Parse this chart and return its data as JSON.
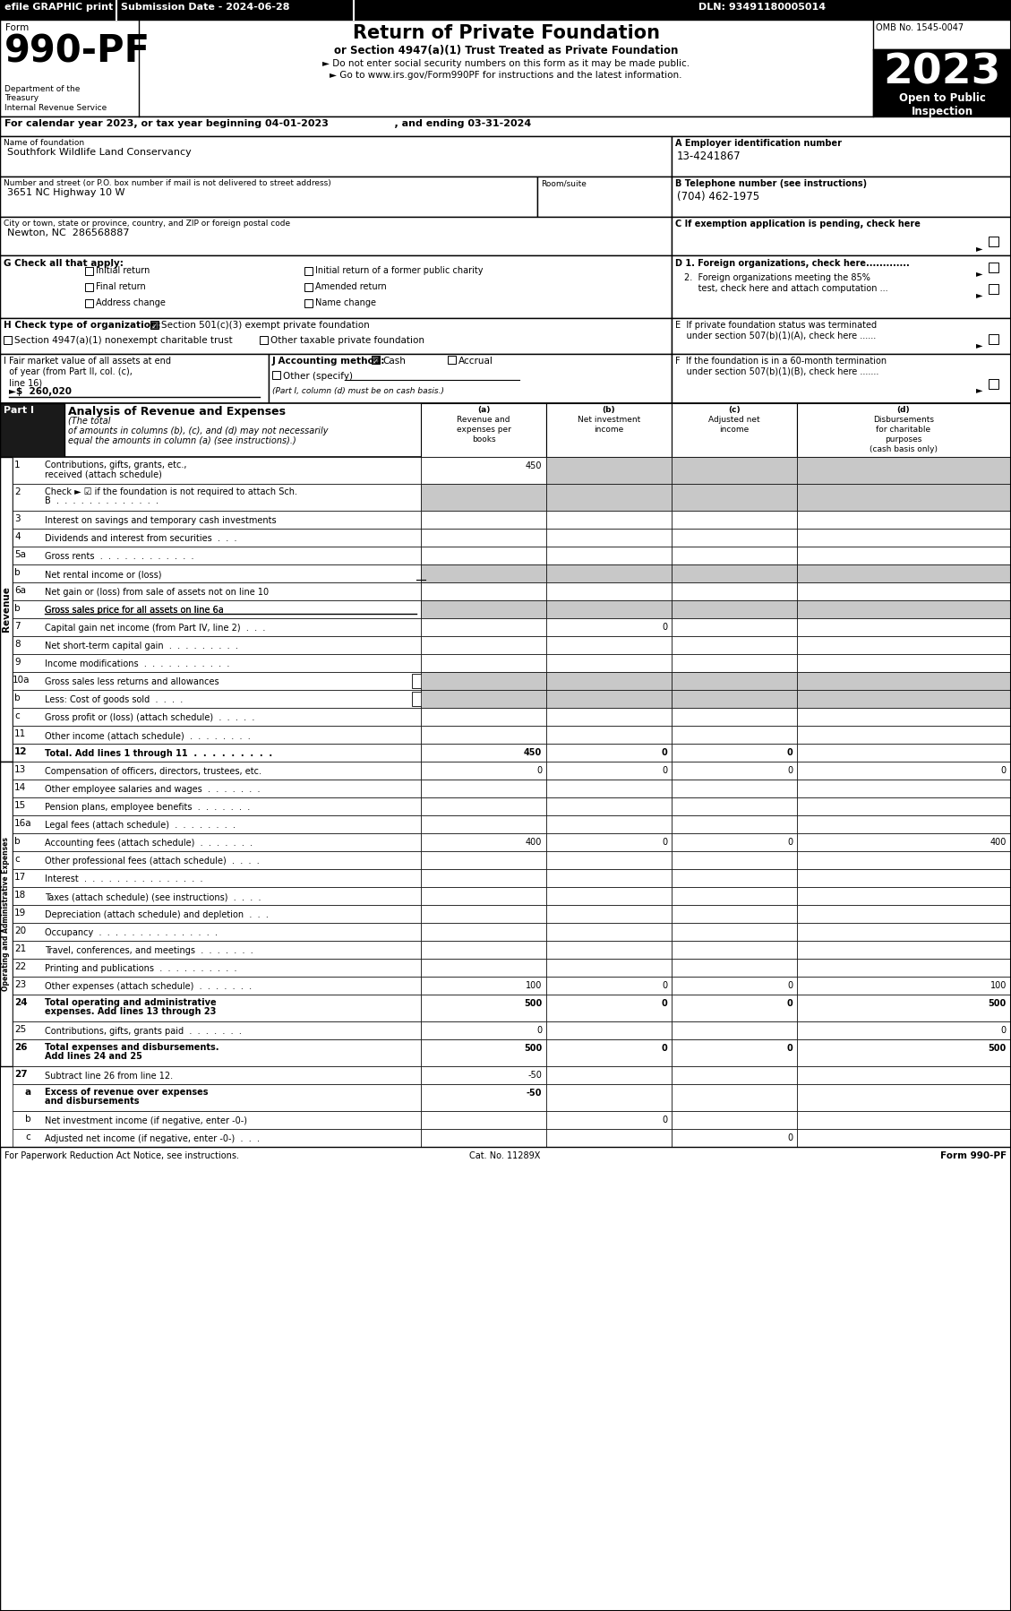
{
  "header_bar_text1": "efile GRAPHIC print",
  "header_bar_text2": "Submission Date - 2024-06-28",
  "header_bar_text3": "DLN: 93491180005014",
  "omb_text": "OMB No. 1545-0047",
  "form_number": "990-PF",
  "title_main": "Return of Private Foundation",
  "title_sub": "or Section 4947(a)(1) Trust Treated as Private Foundation",
  "bullet1": "► Do not enter social security numbers on this form as it may be made public.",
  "bullet2": "► Go to www.irs.gov/Form990PF for instructions and the latest information.",
  "bullet2_url": "www.irs.gov/Form990PF",
  "year_box_text": "2023",
  "open_text": "Open to Public\nInspection",
  "cal_year_line": "For calendar year 2023, or tax year beginning 04-01-2023                   , and ending 03-31-2024",
  "name_label": "Name of foundation",
  "name_value": "Southfork Wildlife Land Conservancy",
  "ein_label": "A Employer identification number",
  "ein_value": "13-4241867",
  "addr_label": "Number and street (or P.O. box number if mail is not delivered to street address)",
  "addr_value": "3651 NC Highway 10 W",
  "room_label": "Room/suite",
  "phone_label": "B Telephone number (see instructions)",
  "phone_value": "(704) 462-1975",
  "city_label": "City or town, state or province, country, and ZIP or foreign postal code",
  "city_value": "Newton, NC  286568887",
  "c_label": "C If exemption application is pending, check here",
  "d1_text": "D 1. Foreign organizations, check here.............",
  "d2_text": "2.  Foreign organizations meeting the 85%\n     test, check here and attach computation ...",
  "e_text": "E  If private foundation status was terminated\n    under section 507(b)(1)(A), check here ......",
  "f_text": "F  If the foundation is in a 60-month termination\n    under section 507(b)(1)(B), check here .......",
  "g_label": "G Check all that apply:",
  "g_options": [
    {
      "label": "Initial return",
      "col": 0,
      "row": 0
    },
    {
      "label": "Initial return of a former public charity",
      "col": 1,
      "row": 0
    },
    {
      "label": "Final return",
      "col": 0,
      "row": 1
    },
    {
      "label": "Amended return",
      "col": 1,
      "row": 1
    },
    {
      "label": "Address change",
      "col": 0,
      "row": 2
    },
    {
      "label": "Name change",
      "col": 1,
      "row": 2
    }
  ],
  "h_checked": "Section 501(c)(3) exempt private foundation",
  "h_option2": "Section 4947(a)(1) nonexempt charitable trust",
  "h_option3": "Other taxable private foundation",
  "i_lines": [
    "I Fair market value of all assets at end",
    "  of year (from Part II, col. (c),",
    "  line 16)  ►$  260,020"
  ],
  "j_cash_checked": true,
  "j_note": "(Part I, column (d) must be on cash basis.)",
  "col_a_header": "(a)\nRevenue and\nexpenses per\nbooks",
  "col_b_header": "(b)\nNet investment\nincome",
  "col_c_header": "(c)\nAdjusted net\nincome",
  "col_d_header": "(d)\nDisbursements\nfor charitable\npurposes\n(cash basis only)",
  "revenue_rows": [
    {
      "num": "1",
      "label": "Contributions, gifts, grants, etc., received (attach schedule)",
      "two_line": true,
      "a": "450",
      "b_shade": true,
      "c_shade": true,
      "d_shade": true
    },
    {
      "num": "2",
      "label": "Check ► ☑ if the foundation is not required to attach Sch. B  .  .  .  .  .  .  .  .  .  .  .  .  .",
      "two_line": true,
      "a_shade": true,
      "b_shade": true,
      "c_shade": true,
      "d_shade": true
    },
    {
      "num": "3",
      "label": "Interest on savings and temporary cash investments",
      "two_line": false
    },
    {
      "num": "4",
      "label": "Dividends and interest from securities  .  .  .",
      "two_line": false
    },
    {
      "num": "5a",
      "label": "Gross rents  .  .  .  .  .  .  .  .  .  .  .  .",
      "two_line": false
    },
    {
      "num": "b",
      "label": "Net rental income or (loss)",
      "two_line": false,
      "a_shade": true,
      "b_shade": true,
      "c_shade": true,
      "d_shade": true,
      "underline_a": true
    },
    {
      "num": "6a",
      "label": "Net gain or (loss) from sale of assets not on line 10",
      "two_line": false
    },
    {
      "num": "b",
      "label": "Gross sales price for all assets on line 6a",
      "two_line": false,
      "a_shade": true,
      "b_shade": true,
      "c_shade": true,
      "d_shade": true,
      "underline_label": true
    },
    {
      "num": "7",
      "label": "Capital gain net income (from Part IV, line 2)  .  .  .",
      "two_line": false,
      "b": "0"
    },
    {
      "num": "8",
      "label": "Net short-term capital gain  .  .  .  .  .  .  .  .  .",
      "two_line": false
    },
    {
      "num": "9",
      "label": "Income modifications  .  .  .  .  .  .  .  .  .  .  .",
      "two_line": false
    },
    {
      "num": "10a",
      "label": "Gross sales less returns and allowances",
      "two_line": false,
      "a_shade": true,
      "b_shade": true,
      "c_shade": true,
      "d_shade": true,
      "box_a": true
    },
    {
      "num": "b",
      "label": "Less: Cost of goods sold  .  .  .  .",
      "two_line": false,
      "a_shade": true,
      "b_shade": true,
      "c_shade": true,
      "d_shade": true,
      "box_a": true
    },
    {
      "num": "c",
      "label": "Gross profit or (loss) (attach schedule)  .  .  .  .  .",
      "two_line": false
    },
    {
      "num": "11",
      "label": "Other income (attach schedule)  .  .  .  .  .  .  .  .",
      "two_line": false
    },
    {
      "num": "12",
      "label": "Total. Add lines 1 through 11  .  .  .  .  .  .  .  .  .",
      "two_line": false,
      "bold": true,
      "a": "450",
      "b": "0",
      "c": "0"
    }
  ],
  "expense_rows": [
    {
      "num": "13",
      "label": "Compensation of officers, directors, trustees, etc.",
      "two_line": false,
      "a": "0",
      "b": "0",
      "c": "0",
      "d": "0"
    },
    {
      "num": "14",
      "label": "Other employee salaries and wages  .  .  .  .  .  .  .",
      "two_line": false
    },
    {
      "num": "15",
      "label": "Pension plans, employee benefits  .  .  .  .  .  .  .",
      "two_line": false
    },
    {
      "num": "16a",
      "label": "Legal fees (attach schedule)  .  .  .  .  .  .  .  .",
      "two_line": false
    },
    {
      "num": "b",
      "label": "Accounting fees (attach schedule)  .  .  .  .  .  .  .",
      "two_line": false,
      "a": "400",
      "b": "0",
      "c": "0",
      "d": "400"
    },
    {
      "num": "c",
      "label": "Other professional fees (attach schedule)  .  .  .  .",
      "two_line": false
    },
    {
      "num": "17",
      "label": "Interest  .  .  .  .  .  .  .  .  .  .  .  .  .  .  .",
      "two_line": false
    },
    {
      "num": "18",
      "label": "Taxes (attach schedule) (see instructions)  .  .  .  .",
      "two_line": false
    },
    {
      "num": "19",
      "label": "Depreciation (attach schedule) and depletion  .  .  .",
      "two_line": false
    },
    {
      "num": "20",
      "label": "Occupancy  .  .  .  .  .  .  .  .  .  .  .  .  .  .  .",
      "two_line": false
    },
    {
      "num": "21",
      "label": "Travel, conferences, and meetings  .  .  .  .  .  .  .",
      "two_line": false
    },
    {
      "num": "22",
      "label": "Printing and publications  .  .  .  .  .  .  .  .  .  .",
      "two_line": false
    },
    {
      "num": "23",
      "label": "Other expenses (attach schedule)  .  .  .  .  .  .  .",
      "two_line": false,
      "a": "100",
      "b": "0",
      "c": "0",
      "d": "100"
    },
    {
      "num": "24",
      "label": "Total operating and administrative expenses. Add lines 13 through 23",
      "two_line": true,
      "bold": true,
      "a": "500",
      "b": "0",
      "c": "0",
      "d": "500"
    },
    {
      "num": "25",
      "label": "Contributions, gifts, grants paid  .  .  .  .  .  .  .",
      "two_line": false,
      "a": "0",
      "d": "0"
    },
    {
      "num": "26",
      "label": "Total expenses and disbursements. Add lines 24 and 25",
      "two_line": true,
      "bold": true,
      "a": "500",
      "b": "0",
      "c": "0",
      "d": "500"
    }
  ],
  "bottom_rows": [
    {
      "num": "27",
      "label": "Subtract line 26 from line 12.",
      "bold": false,
      "a": "-50"
    },
    {
      "num": "a",
      "label": "Excess of revenue over expenses and disbursements",
      "two_line": true,
      "bold": true,
      "a": "-50"
    },
    {
      "num": "b",
      "label": "Net investment income (if negative, enter -0-)",
      "bold": false,
      "b": "0"
    },
    {
      "num": "c",
      "label": "Adjusted net income (if negative, enter -0-)  .  .  .",
      "bold": false,
      "c": "0"
    }
  ],
  "footer_left": "For Paperwork Reduction Act Notice, see instructions.",
  "footer_center": "Cat. No. 11289X",
  "footer_right": "Form 990-PF"
}
